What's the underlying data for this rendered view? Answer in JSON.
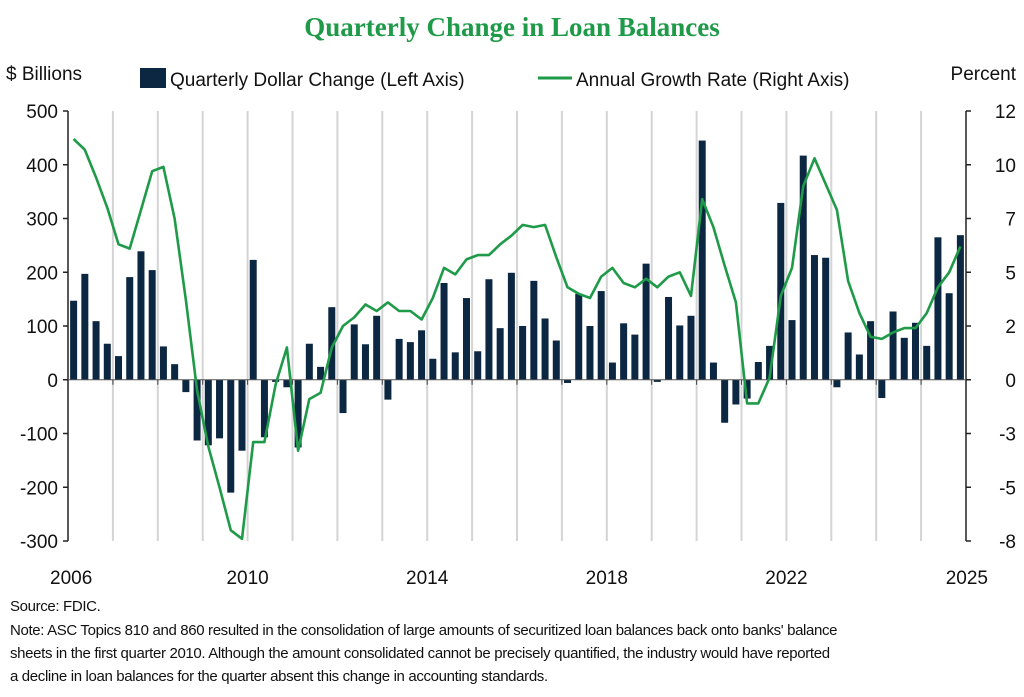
{
  "chart_data": {
    "type": "bar+line",
    "title": "Quarterly Change in Loan Balances",
    "left_axis_label": "$ Billions",
    "right_axis_label": "Percent",
    "left_ylim": [
      -300,
      500
    ],
    "left_ticks": [
      "500",
      "400",
      "300",
      "200",
      "100",
      "0",
      "-100",
      "-200",
      "-300"
    ],
    "right_ylim": [
      -8,
      12
    ],
    "right_ticks": [
      "12",
      "10",
      "7",
      "5",
      "2",
      "0",
      "-3",
      "-5",
      "-8"
    ],
    "x_tick_labels": [
      "2006",
      "2010",
      "2014",
      "2018",
      "2022",
      "2025"
    ],
    "x_tick_quarter_index": [
      0,
      16,
      32,
      48,
      64,
      80
    ],
    "grid": "vertical lines at each year",
    "legend_placement": "top",
    "colors": {
      "bars": "#0c2741",
      "line": "#1e9a48",
      "title": "#1e9a48",
      "grid": "#d4d4d4"
    },
    "series": [
      {
        "name": "Quarterly Dollar Change (Left Axis)",
        "type": "bar",
        "axis": "left",
        "values": [
          147,
          197,
          109,
          67,
          44,
          191,
          239,
          204,
          62,
          29,
          -23,
          -113,
          -122,
          -109,
          -210,
          -132,
          223,
          -107,
          -4,
          -14,
          -126,
          67,
          24,
          135,
          -62,
          103,
          66,
          119,
          -37,
          76,
          70,
          92,
          39,
          180,
          51,
          152,
          53,
          187,
          96,
          199,
          100,
          184,
          114,
          73,
          -6,
          160,
          100,
          165,
          32,
          105,
          84,
          216,
          -4,
          154,
          101,
          119,
          445,
          32,
          -80,
          -46,
          -35,
          33,
          63,
          329,
          111,
          417,
          232,
          227,
          -14,
          88,
          47,
          109,
          -34,
          127,
          78,
          106,
          63,
          265,
          161,
          269
        ]
      },
      {
        "name": "Annual Growth Rate (Right Axis)",
        "type": "line",
        "axis": "right",
        "values": [
          10.7,
          10.2,
          8.9,
          7.5,
          5.8,
          5.6,
          7.4,
          9.2,
          9.4,
          7.0,
          3.2,
          -1.0,
          -3.6,
          -5.5,
          -7.5,
          -7.9,
          -3.4,
          -3.4,
          -0.7,
          1.0,
          -3.8,
          -1.4,
          -1.1,
          1.0,
          2.0,
          2.4,
          3.0,
          2.7,
          3.1,
          2.7,
          2.7,
          2.3,
          3.3,
          4.7,
          4.4,
          5.1,
          5.3,
          5.3,
          5.8,
          6.2,
          6.7,
          6.6,
          6.7,
          5.2,
          3.8,
          3.5,
          3.3,
          4.3,
          4.7,
          4.0,
          3.8,
          4.2,
          3.8,
          4.3,
          4.5,
          3.4,
          7.9,
          6.6,
          4.8,
          3.1,
          -1.6,
          -1.6,
          -0.4,
          3.4,
          4.7,
          8.5,
          9.8,
          8.6,
          7.4,
          4.1,
          2.6,
          1.5,
          1.4,
          1.7,
          1.9,
          1.9,
          2.6,
          3.8,
          4.5,
          5.7
        ]
      }
    ]
  },
  "footer": {
    "source": "Source: FDIC.",
    "note_lines": [
      "Note: ASC Topics 810 and 860 resulted in the consolidation of large amounts of securitized loan balances back onto banks' balance",
      "sheets in the first quarter 2010. Although the amount consolidated cannot be precisely quantified, the industry would have reported",
      "a decline in loan balances for the quarter absent this change in accounting standards."
    ]
  }
}
